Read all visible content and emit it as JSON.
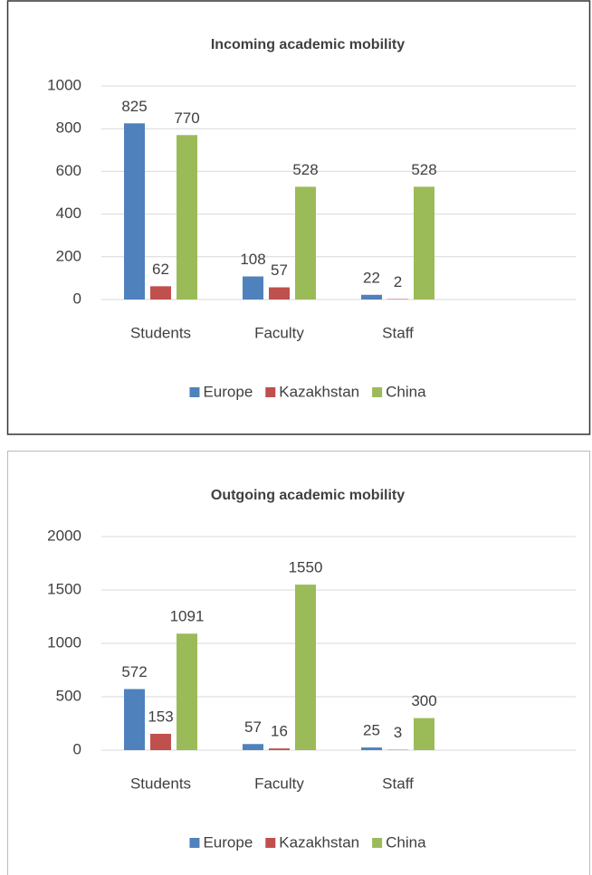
{
  "chart_data": [
    {
      "type": "bar",
      "title": "Incoming academic mobility",
      "categories": [
        "Students",
        "Faculty",
        "Staff",
        null
      ],
      "series": [
        {
          "name": "Europe",
          "color": "#4f81bd",
          "values": [
            825,
            108,
            22,
            null
          ]
        },
        {
          "name": "Kazakhstan",
          "color": "#c0504d",
          "values": [
            62,
            57,
            2,
            null
          ]
        },
        {
          "name": "China",
          "color": "#9bbb59",
          "values": [
            770,
            528,
            528,
            null
          ]
        }
      ],
      "ylim": [
        0,
        1000
      ],
      "yticks": [
        0,
        200,
        400,
        600,
        800,
        1000
      ],
      "grid": true,
      "legend": "bottom"
    },
    {
      "type": "bar",
      "title": "Outgoing academic mobility",
      "categories": [
        "Students",
        "Faculty",
        "Staff",
        null
      ],
      "series": [
        {
          "name": "Europe",
          "color": "#4f81bd",
          "values": [
            572,
            57,
            25,
            null
          ]
        },
        {
          "name": "Kazakhstan",
          "color": "#c0504d",
          "values": [
            153,
            16,
            3,
            null
          ]
        },
        {
          "name": "China",
          "color": "#9bbb59",
          "values": [
            1091,
            1550,
            300,
            null
          ]
        }
      ],
      "ylim": [
        0,
        2000
      ],
      "yticks": [
        0,
        500,
        1000,
        1500,
        2000
      ],
      "grid": true,
      "legend": "bottom"
    }
  ]
}
